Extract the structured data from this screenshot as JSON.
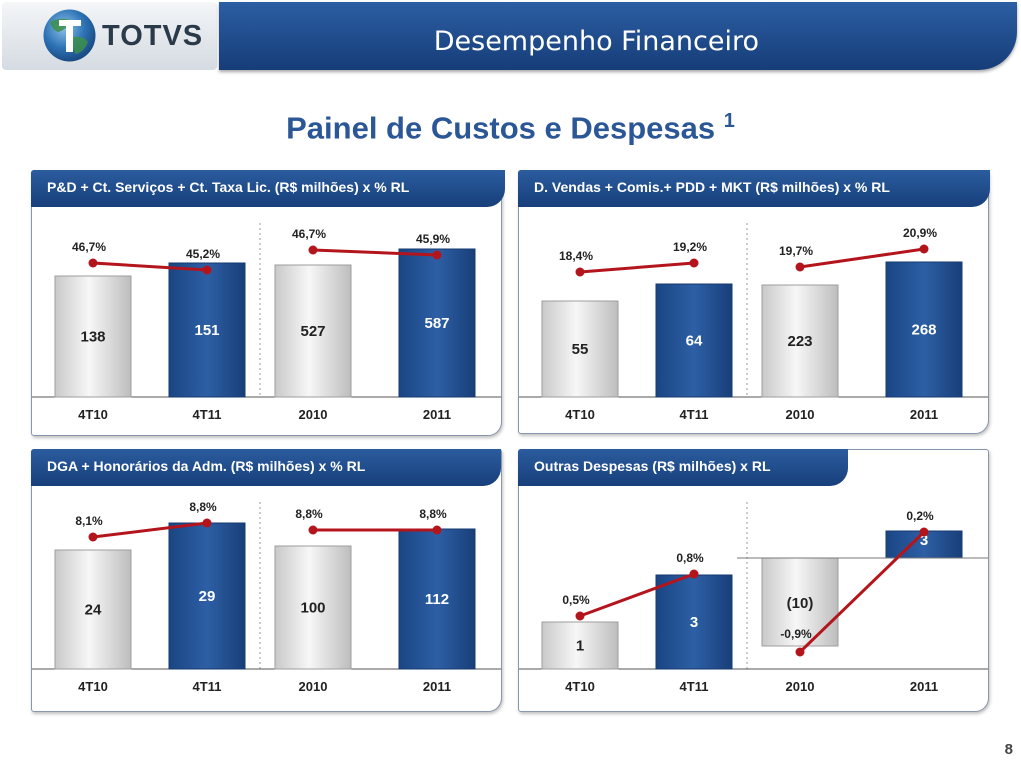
{
  "header": {
    "brand": "TOTVS",
    "title": "Desempenho Financeiro"
  },
  "page_title": {
    "text": "Painel de Custos e Despesas",
    "superscript": "1"
  },
  "page_number": "8",
  "colors": {
    "dark_bar": "#1f4d8f",
    "light_bar": "#e0e0e0",
    "line": "#b4151c",
    "header": "#1f4d8f"
  },
  "chart_data": [
    {
      "type": "bar",
      "title": "P&D + Ct. Serviços + Ct. Taxa Lic. (R$ milhões) x % RL",
      "categories": [
        "4T10",
        "4T11",
        "2010",
        "2011"
      ],
      "series": [
        {
          "values": [
            138,
            151,
            527,
            587
          ],
          "labels": [
            "138",
            "151",
            "527",
            "587"
          ]
        },
        {
          "type": "line",
          "values": [
            46.7,
            45.2,
            46.7,
            45.9
          ],
          "labels": [
            "46,7%",
            "45,2%",
            "46,7%",
            "45,9%"
          ]
        }
      ]
    },
    {
      "type": "bar",
      "title": "D. Vendas + Comis.+ PDD + MKT  (R$ milhões) x % RL",
      "categories": [
        "4T10",
        "4T11",
        "2010",
        "2011"
      ],
      "series": [
        {
          "values": [
            55,
            64,
            223,
            268
          ],
          "labels": [
            "55",
            "64",
            "223",
            "268"
          ]
        },
        {
          "type": "line",
          "values": [
            18.4,
            19.2,
            19.7,
            20.9
          ],
          "labels": [
            "18,4%",
            "19,2%",
            "19,7%",
            "20,9%"
          ]
        }
      ]
    },
    {
      "type": "bar",
      "title": "DGA  + Honorários da Adm. (R$ milhões) x % RL",
      "categories": [
        "4T10",
        "4T11",
        "2010",
        "2011"
      ],
      "series": [
        {
          "values": [
            24,
            29,
            100,
            112
          ],
          "labels": [
            "24",
            "29",
            "100",
            "112"
          ]
        },
        {
          "type": "line",
          "values": [
            8.1,
            8.8,
            8.8,
            8.8
          ],
          "labels": [
            "8,1%",
            "8,8%",
            "8,8%",
            "8,8%"
          ]
        }
      ]
    },
    {
      "type": "bar",
      "title": "Outras Despesas  (R$ milhões) x RL",
      "categories": [
        "4T10",
        "4T11",
        "2010",
        "2011"
      ],
      "series": [
        {
          "values": [
            1,
            3,
            -10,
            3
          ],
          "labels": [
            "1",
            "3",
            "(10)",
            "3"
          ]
        },
        {
          "type": "line",
          "values": [
            0.5,
            0.8,
            -0.9,
            0.2
          ],
          "labels": [
            "0,5%",
            "0,8%",
            "-0,9%",
            "0,2%"
          ]
        }
      ]
    }
  ]
}
